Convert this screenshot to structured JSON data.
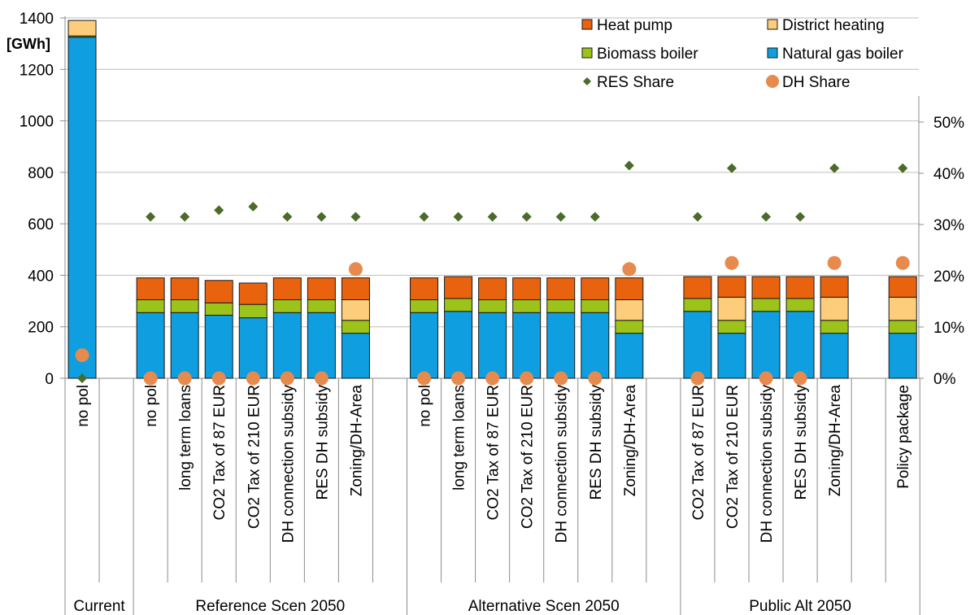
{
  "chart_data": {
    "type": "bar",
    "unit_label": "[GWh]",
    "ylim": [
      0,
      1400
    ],
    "y_ticks": [
      "0",
      "200",
      "400",
      "600",
      "800",
      "1000",
      "1200",
      "1400"
    ],
    "ylim_right": [
      0,
      0.55
    ],
    "y2_ticks": [
      "0%",
      "10%",
      "20%",
      "30%",
      "40%",
      "50%"
    ],
    "grid": true,
    "legend_position": "top-right",
    "colors": {
      "heat_pump": "#e9630f",
      "district_heating": "#fdcd7b",
      "biomass_boiler": "#9cc319",
      "natural_gas_boiler": "#0f9ee0",
      "res_share": "#4a6b2a",
      "dh_share": "#e68a4e"
    },
    "legend": {
      "heat_pump": "Heat pump",
      "district_heating": "District heating",
      "biomass_boiler": "Biomass boiler",
      "natural_gas_boiler": "Natural gas boiler",
      "res_share": "RES Share",
      "dh_share": "DH Share"
    },
    "groups": [
      {
        "label": "Current",
        "categories": [
          "no pol"
        ]
      },
      {
        "label": "Reference Scen 2050",
        "categories": [
          "no pol",
          "long term loans",
          "CO2 Tax of 87 EUR",
          "CO2 Tax of 210 EUR",
          "DH connection subsidy",
          "RES DH subsidy",
          "Zoning/DH-Area"
        ]
      },
      {
        "label": "Alternative Scen 2050",
        "categories": [
          "no pol",
          "long term loans",
          "CO2 Tax of 87 EUR",
          "CO2 Tax of 210 EUR",
          "DH connection subsidy",
          "RES DH subsidy",
          "Zoning/DH-Area"
        ]
      },
      {
        "label": "Public Alt 2050",
        "categories": [
          "CO2 Tax of 87 EUR",
          "CO2 Tax of 210 EUR",
          "DH connection subsidy",
          "RES DH subsidy",
          "Zoning/DH-Area",
          "Policy package"
        ]
      }
    ],
    "series": [
      {
        "key": "natural_gas_boiler",
        "name": "Natural gas boiler",
        "values": [
          1325,
          255,
          255,
          245,
          235,
          255,
          255,
          175,
          255,
          260,
          255,
          255,
          255,
          255,
          175,
          260,
          175,
          260,
          260,
          175,
          175
        ]
      },
      {
        "key": "biomass_boiler",
        "name": "Biomass boiler",
        "values": [
          5,
          50,
          50,
          48,
          52,
          50,
          50,
          50,
          50,
          50,
          50,
          50,
          50,
          50,
          50,
          50,
          50,
          50,
          50,
          50,
          50
        ]
      },
      {
        "key": "district_heating",
        "name": "District heating",
        "values": [
          60,
          0,
          0,
          0,
          0,
          0,
          0,
          80,
          0,
          0,
          0,
          0,
          0,
          0,
          80,
          0,
          90,
          0,
          0,
          90,
          90
        ]
      },
      {
        "key": "heat_pump",
        "name": "Heat pump",
        "values": [
          0,
          85,
          85,
          87,
          83,
          85,
          85,
          85,
          85,
          85,
          85,
          85,
          85,
          85,
          85,
          85,
          80,
          85,
          85,
          80,
          80
        ]
      }
    ],
    "res_share": {
      "name": "RES Share",
      "values": [
        0.0,
        0.315,
        0.315,
        0.328,
        0.335,
        0.315,
        0.315,
        0.315,
        0.315,
        0.315,
        0.315,
        0.315,
        0.315,
        0.315,
        0.415,
        0.315,
        0.41,
        0.315,
        0.315,
        0.41,
        0.41
      ]
    },
    "dh_share": {
      "name": "DH Share",
      "values": [
        0.045,
        0.0,
        0.0,
        0.0,
        0.0,
        0.0,
        0.0,
        0.213,
        0.0,
        0.0,
        0.0,
        0.0,
        0.0,
        0.0,
        0.213,
        0.0,
        0.225,
        0.0,
        0.0,
        0.225,
        0.225
      ]
    }
  }
}
